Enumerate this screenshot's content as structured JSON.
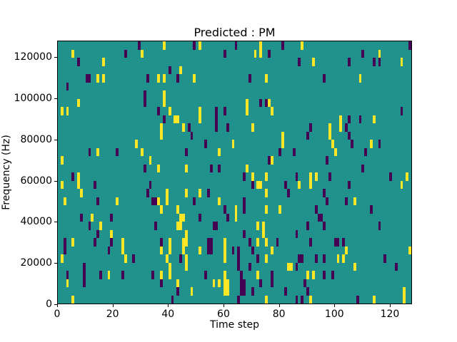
{
  "figure": {
    "background": "#ffffff"
  },
  "chart_data": {
    "type": "heatmap",
    "title": "Predicted : PM",
    "xlabel": "Time step",
    "ylabel": "Frequency (Hz)",
    "x_ticks": [
      0,
      20,
      40,
      60,
      80,
      100,
      120
    ],
    "y_ticks": [
      0,
      20000,
      40000,
      60000,
      80000,
      100000,
      120000
    ],
    "x_range": [
      0,
      128
    ],
    "y_range": [
      0,
      128000
    ],
    "grid": {
      "cols": 128,
      "rows": 32,
      "gridlines": false
    },
    "legend": "none",
    "colormap": {
      "name": "viridis-3-level",
      "mid_color": "#21918c",
      "max_color": "#fde725",
      "min_color": "#440154"
    },
    "cells_note": "Sparse cells as [time_col, freq_row] with row 0 at top (highest frequency); all unlisted cells have mid_color value.",
    "cells_max": [
      [
        5,
        1
      ],
      [
        16,
        2
      ],
      [
        30,
        1
      ],
      [
        38,
        0
      ],
      [
        14,
        4
      ],
      [
        16,
        4
      ],
      [
        36,
        4
      ],
      [
        38,
        4
      ],
      [
        7,
        7
      ],
      [
        38,
        6
      ],
      [
        38,
        7
      ],
      [
        1,
        8
      ],
      [
        3,
        8
      ],
      [
        40,
        8
      ],
      [
        42,
        9
      ],
      [
        37,
        10
      ],
      [
        51,
        0
      ],
      [
        71,
        1
      ],
      [
        73,
        0
      ],
      [
        73,
        1
      ],
      [
        44,
        3
      ],
      [
        49,
        4
      ],
      [
        75,
        4
      ],
      [
        68,
        7
      ],
      [
        68,
        8
      ],
      [
        76,
        7
      ],
      [
        77,
        8
      ],
      [
        51,
        8
      ],
      [
        51,
        9
      ],
      [
        70,
        10
      ],
      [
        43,
        9
      ],
      [
        45,
        10
      ],
      [
        88,
        0
      ],
      [
        92,
        2
      ],
      [
        116,
        1
      ],
      [
        124,
        2
      ],
      [
        109,
        4
      ],
      [
        102,
        9
      ],
      [
        102,
        10
      ],
      [
        114,
        9
      ],
      [
        98,
        10
      ],
      [
        37,
        11
      ],
      [
        28,
        12
      ],
      [
        14,
        13
      ],
      [
        30,
        13
      ],
      [
        1,
        14
      ],
      [
        33,
        14
      ],
      [
        36,
        15
      ],
      [
        7,
        16
      ],
      [
        7,
        17
      ],
      [
        1,
        17
      ],
      [
        8,
        18
      ],
      [
        2,
        19
      ],
      [
        21,
        19
      ],
      [
        36,
        19
      ],
      [
        39,
        18
      ],
      [
        39,
        19
      ],
      [
        37,
        20
      ],
      [
        12,
        21
      ],
      [
        63,
        12
      ],
      [
        81,
        11
      ],
      [
        81,
        12
      ],
      [
        58,
        13
      ],
      [
        77,
        14
      ],
      [
        46,
        15
      ],
      [
        68,
        15
      ],
      [
        70,
        16
      ],
      [
        75,
        16
      ],
      [
        72,
        17
      ],
      [
        73,
        17
      ],
      [
        75,
        18
      ],
      [
        46,
        18
      ],
      [
        51,
        18
      ],
      [
        58,
        19
      ],
      [
        75,
        20
      ],
      [
        43,
        20
      ],
      [
        44,
        21
      ],
      [
        45,
        21
      ],
      [
        64,
        20
      ],
      [
        64,
        21
      ],
      [
        80,
        20
      ],
      [
        98,
        11
      ],
      [
        99,
        12
      ],
      [
        100,
        13
      ],
      [
        113,
        12
      ],
      [
        91,
        16
      ],
      [
        91,
        17
      ],
      [
        93,
        16
      ],
      [
        87,
        17
      ],
      [
        126,
        16
      ],
      [
        124,
        17
      ],
      [
        107,
        19
      ],
      [
        15,
        22
      ],
      [
        19,
        23
      ],
      [
        5,
        24
      ],
      [
        23,
        24
      ],
      [
        23,
        25
      ],
      [
        40,
        24
      ],
      [
        40,
        25
      ],
      [
        37,
        25
      ],
      [
        1,
        26
      ],
      [
        24,
        26
      ],
      [
        39,
        26
      ],
      [
        40,
        27
      ],
      [
        3,
        29
      ],
      [
        18,
        28
      ],
      [
        37,
        28
      ],
      [
        40,
        28
      ],
      [
        5,
        31
      ],
      [
        43,
        22
      ],
      [
        44,
        22
      ],
      [
        72,
        22
      ],
      [
        74,
        22
      ],
      [
        74,
        23
      ],
      [
        46,
        23
      ],
      [
        45,
        24
      ],
      [
        46,
        24
      ],
      [
        45,
        25
      ],
      [
        46,
        26
      ],
      [
        46,
        27
      ],
      [
        51,
        25
      ],
      [
        60,
        24
      ],
      [
        60,
        25
      ],
      [
        60,
        26
      ],
      [
        60,
        28
      ],
      [
        60,
        29
      ],
      [
        61,
        29
      ],
      [
        60,
        30
      ],
      [
        61,
        30
      ],
      [
        72,
        24
      ],
      [
        75,
        24
      ],
      [
        77,
        25
      ],
      [
        75,
        26
      ],
      [
        72,
        28
      ],
      [
        43,
        29
      ],
      [
        48,
        30
      ],
      [
        56,
        29
      ],
      [
        58,
        29
      ],
      [
        75,
        31
      ],
      [
        101,
        26
      ],
      [
        103,
        26
      ],
      [
        104,
        25
      ],
      [
        107,
        27
      ],
      [
        90,
        28
      ],
      [
        92,
        28
      ],
      [
        91,
        31
      ],
      [
        114,
        31
      ],
      [
        125,
        30
      ],
      [
        125,
        31
      ],
      [
        127,
        25
      ],
      [
        83,
        27
      ],
      [
        84,
        27
      ]
    ],
    "cells_min": [
      [
        7,
        2
      ],
      [
        24,
        1
      ],
      [
        29,
        0
      ],
      [
        10,
        4
      ],
      [
        11,
        4
      ],
      [
        32,
        4
      ],
      [
        40,
        3
      ],
      [
        3,
        5
      ],
      [
        31,
        6
      ],
      [
        31,
        7
      ],
      [
        36,
        8
      ],
      [
        38,
        9
      ],
      [
        49,
        0
      ],
      [
        60,
        1
      ],
      [
        64,
        0
      ],
      [
        76,
        1
      ],
      [
        81,
        0
      ],
      [
        43,
        4
      ],
      [
        69,
        4
      ],
      [
        73,
        7
      ],
      [
        75,
        7
      ],
      [
        57,
        8
      ],
      [
        57,
        9
      ],
      [
        57,
        10
      ],
      [
        60,
        8
      ],
      [
        61,
        10
      ],
      [
        47,
        10
      ],
      [
        87,
        2
      ],
      [
        105,
        2
      ],
      [
        110,
        1
      ],
      [
        114,
        2
      ],
      [
        116,
        2
      ],
      [
        127,
        0
      ],
      [
        96,
        4
      ],
      [
        124,
        8
      ],
      [
        105,
        9
      ],
      [
        109,
        9
      ],
      [
        91,
        10
      ],
      [
        104,
        10
      ],
      [
        11,
        13
      ],
      [
        21,
        13
      ],
      [
        5,
        16
      ],
      [
        13,
        17
      ],
      [
        33,
        17
      ],
      [
        32,
        18
      ],
      [
        14,
        19
      ],
      [
        34,
        19
      ],
      [
        35,
        19
      ],
      [
        8,
        21
      ],
      [
        19,
        21
      ],
      [
        31,
        15
      ],
      [
        48,
        11
      ],
      [
        53,
        12
      ],
      [
        46,
        13
      ],
      [
        80,
        13
      ],
      [
        85,
        13
      ],
      [
        76,
        14
      ],
      [
        55,
        15
      ],
      [
        58,
        15
      ],
      [
        67,
        16
      ],
      [
        70,
        17
      ],
      [
        82,
        17
      ],
      [
        83,
        18
      ],
      [
        54,
        18
      ],
      [
        49,
        19
      ],
      [
        67,
        19
      ],
      [
        67,
        20
      ],
      [
        60,
        20
      ],
      [
        61,
        21
      ],
      [
        51,
        21
      ],
      [
        90,
        11
      ],
      [
        105,
        11
      ],
      [
        106,
        12
      ],
      [
        116,
        12
      ],
      [
        111,
        13
      ],
      [
        97,
        14
      ],
      [
        110,
        15
      ],
      [
        86,
        16
      ],
      [
        98,
        16
      ],
      [
        120,
        16
      ],
      [
        105,
        17
      ],
      [
        96,
        18
      ],
      [
        97,
        19
      ],
      [
        104,
        19
      ],
      [
        93,
        20
      ],
      [
        94,
        21
      ],
      [
        95,
        21
      ],
      [
        113,
        20
      ],
      [
        11,
        22
      ],
      [
        14,
        23
      ],
      [
        19,
        24
      ],
      [
        35,
        22
      ],
      [
        2,
        24
      ],
      [
        2,
        25
      ],
      [
        13,
        24
      ],
      [
        37,
        24
      ],
      [
        18,
        25
      ],
      [
        9,
        27
      ],
      [
        3,
        28
      ],
      [
        9,
        28
      ],
      [
        9,
        29
      ],
      [
        15,
        28
      ],
      [
        23,
        28
      ],
      [
        34,
        28
      ],
      [
        37,
        29
      ],
      [
        41,
        31
      ],
      [
        27,
        26
      ],
      [
        56,
        22
      ],
      [
        57,
        22
      ],
      [
        44,
        26
      ],
      [
        54,
        24
      ],
      [
        55,
        24
      ],
      [
        54,
        25
      ],
      [
        55,
        25
      ],
      [
        53,
        28
      ],
      [
        63,
        25
      ],
      [
        65,
        25
      ],
      [
        65,
        26
      ],
      [
        65,
        27
      ],
      [
        67,
        23
      ],
      [
        69,
        24
      ],
      [
        70,
        25
      ],
      [
        72,
        26
      ],
      [
        69,
        27
      ],
      [
        66,
        28
      ],
      [
        66,
        29
      ],
      [
        67,
        29
      ],
      [
        66,
        30
      ],
      [
        67,
        30
      ],
      [
        65,
        31
      ],
      [
        70,
        30
      ],
      [
        73,
        29
      ],
      [
        43,
        30
      ],
      [
        90,
        22
      ],
      [
        96,
        22
      ],
      [
        116,
        22
      ],
      [
        86,
        23
      ],
      [
        103,
        24
      ],
      [
        91,
        24
      ],
      [
        100,
        24
      ],
      [
        101,
        24
      ],
      [
        93,
        26
      ],
      [
        96,
        26
      ],
      [
        87,
        26
      ],
      [
        88,
        26
      ],
      [
        86,
        27
      ],
      [
        96,
        28
      ],
      [
        118,
        26
      ],
      [
        122,
        27
      ],
      [
        99,
        28
      ],
      [
        89,
        29
      ],
      [
        90,
        30
      ],
      [
        88,
        31
      ],
      [
        86,
        31
      ],
      [
        108,
        31
      ],
      [
        79,
        24
      ],
      [
        77,
        28
      ],
      [
        77,
        29
      ],
      [
        82,
        30
      ]
    ]
  }
}
